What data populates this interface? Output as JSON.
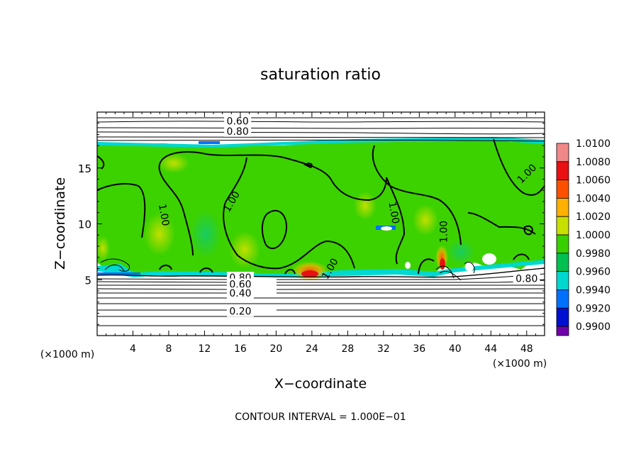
{
  "chart_data": {
    "type": "heatmap",
    "title": "saturation ratio",
    "xlabel": "X−coordinate",
    "ylabel": "Z−coordinate",
    "x_unit_left": "(×1000 m)",
    "x_unit_right": "(×1000 m)",
    "xlim": [
      0,
      50
    ],
    "ylim": [
      0,
      20
    ],
    "x_ticks": [
      4,
      8,
      12,
      16,
      20,
      24,
      28,
      32,
      36,
      40,
      44,
      48
    ],
    "y_ticks": [
      5,
      10,
      15
    ],
    "footer": "CONTOUR INTERVAL = 1.000E−01",
    "colorbar": {
      "labels": [
        "1.0100",
        "1.0080",
        "1.0060",
        "1.0040",
        "1.0020",
        "1.0000",
        "0.9980",
        "0.9960",
        "0.9940",
        "0.9920",
        "0.9900"
      ],
      "colors": [
        "#f08888",
        "#e81010",
        "#ff5000",
        "#ffb000",
        "#c8e000",
        "#38d000",
        "#00c050",
        "#00d8d0",
        "#0070ff",
        "#0010d0",
        "#7000a8"
      ]
    },
    "contour_labels": [
      {
        "text": "0.60",
        "x": 15.7,
        "z": 19.2
      },
      {
        "text": "0.80",
        "x": 15.7,
        "z": 18.3
      },
      {
        "text": "1.00",
        "x": 7.5,
        "z": 10.8,
        "angle": 80
      },
      {
        "text": "1.00",
        "x": 15.0,
        "z": 12.0,
        "angle": -60
      },
      {
        "text": "1.00",
        "x": 26.0,
        "z": 6.0,
        "angle": -60
      },
      {
        "text": "1.00",
        "x": 33.2,
        "z": 11.0,
        "angle": 80
      },
      {
        "text": "1.00",
        "x": 38.7,
        "z": 9.3,
        "angle": -90
      },
      {
        "text": "1.00",
        "x": 48.0,
        "z": 14.5,
        "angle": -45
      },
      {
        "text": "0.80",
        "x": 16.0,
        "z": 5.2
      },
      {
        "text": "0.60",
        "x": 16.0,
        "z": 4.6
      },
      {
        "text": "0.40",
        "x": 16.0,
        "z": 3.8
      },
      {
        "text": "0.20",
        "x": 16.0,
        "z": 2.2
      },
      {
        "text": "0.80",
        "x": 48.0,
        "z": 5.1
      }
    ]
  }
}
